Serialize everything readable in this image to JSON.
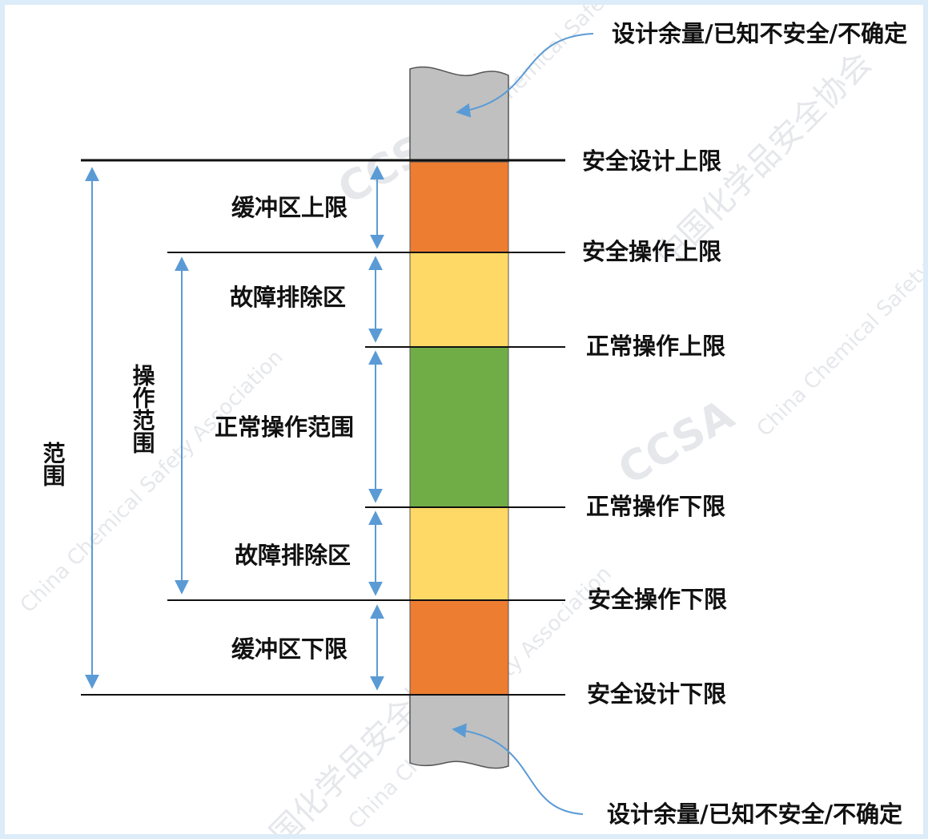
{
  "top_note": "设计余量/已知不安全/不确定",
  "bottom_note": "设计余量/已知不安全/不确定",
  "limits": {
    "safe_design_upper": "安全设计上限",
    "safe_op_upper": "安全操作上限",
    "normal_op_upper": "正常操作上限",
    "normal_op_lower": "正常操作下限",
    "safe_op_lower": "安全操作下限",
    "safe_design_lower": "安全设计下限"
  },
  "zones": {
    "buffer_upper": "缓冲区上限",
    "troubleshoot_upper": "故障排除区",
    "normal_range": "正常操作范围",
    "troubleshoot_lower": "故障排除区",
    "buffer_lower": "缓冲区下限"
  },
  "side_labels": {
    "range": "范围",
    "operating_range": "操作范围"
  },
  "watermark": {
    "org_en": "China Chemical Safety Association",
    "org_cn": "中国化学品安全协会",
    "logo": "CCSA"
  },
  "colors": {
    "margin_gray": "#c0c0c0",
    "buffer_orange": "#ed7d31",
    "troubleshoot_yellow": "#ffd966",
    "normal_green": "#70ad47",
    "arrow_blue": "#5b9bd5"
  }
}
